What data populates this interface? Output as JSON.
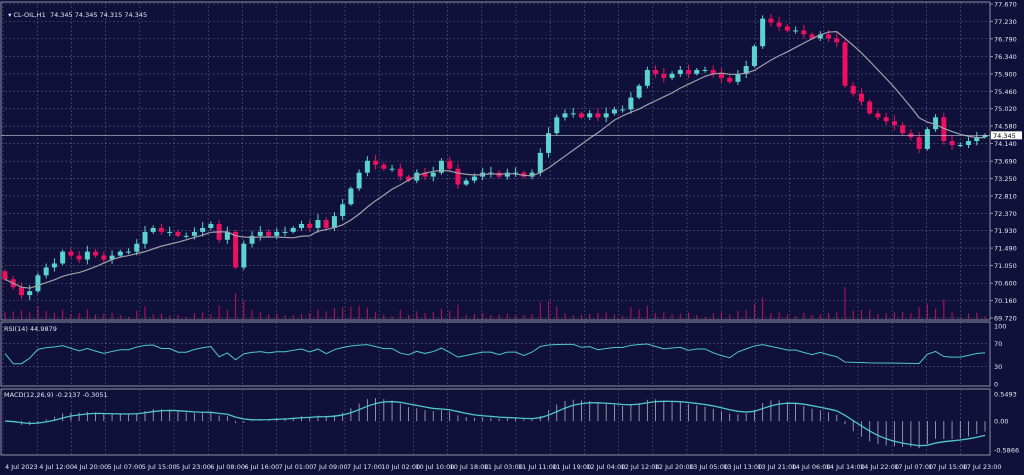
{
  "header": {
    "symbol": "CL-OIL,H1",
    "ohlc": "74.345 74.345 74.315 74.345"
  },
  "colors": {
    "background": "#10113a",
    "grid": "#5a5c80",
    "bull": "#5dd3d0",
    "bear": "#ee1060",
    "ma": "#a0a0a8",
    "indicator": "#4fc8c8",
    "axis_border": "#9090a0"
  },
  "chart_data": [
    {
      "type": "candlestick",
      "name": "CL-OIL,H1",
      "current_price": "74.345",
      "ylim": [
        69.72,
        77.67
      ],
      "y_ticks": [
        "77.670",
        "77.230",
        "76.790",
        "76.340",
        "75.900",
        "75.460",
        "75.020",
        "74.580",
        "74.140",
        "73.690",
        "73.250",
        "72.810",
        "72.370",
        "71.930",
        "71.490",
        "71.050",
        "70.600",
        "70.160",
        "69.720"
      ],
      "x_ticks": [
        "4 Jul 2023",
        "4 Jul 12:00",
        "4 Jul 20:00",
        "5 Jul 07:00",
        "5 Jul 15:00",
        "5 Jul 23:00",
        "6 Jul 08:00",
        "6 Jul 16:00",
        "7 Jul 01:00",
        "7 Jul 09:00",
        "7 Jul 17:00",
        "10 Jul 02:00",
        "10 Jul 10:00",
        "10 Jul 18:00",
        "11 Jul 03:00",
        "11 Jul 11:00",
        "11 Jul 19:00",
        "12 Jul 04:00",
        "12 Jul 12:00",
        "12 Jul 20:00",
        "13 Jul 05:00",
        "13 Jul 13:00",
        "13 Jul 21:00",
        "14 Jul 06:00",
        "14 Jul 14:00",
        "14 Jul 22:00",
        "17 Jul 07:00",
        "17 Jul 15:00",
        "17 Jul 23:00"
      ],
      "closes": [
        70.7,
        70.5,
        70.3,
        70.4,
        70.8,
        71.0,
        71.1,
        71.4,
        71.3,
        71.2,
        71.4,
        71.3,
        71.2,
        71.3,
        71.4,
        71.4,
        71.6,
        71.9,
        72.0,
        71.9,
        71.9,
        71.8,
        71.8,
        71.9,
        72.0,
        72.1,
        71.7,
        71.9,
        71.0,
        71.6,
        71.8,
        71.9,
        71.8,
        71.9,
        71.9,
        72.0,
        72.1,
        72.0,
        72.2,
        72.0,
        72.3,
        72.6,
        73.0,
        73.4,
        73.7,
        73.6,
        73.5,
        73.5,
        73.3,
        73.2,
        73.4,
        73.3,
        73.4,
        73.7,
        73.5,
        73.1,
        73.2,
        73.3,
        73.4,
        73.4,
        73.3,
        73.4,
        73.4,
        73.3,
        73.4,
        73.9,
        74.4,
        74.8,
        74.9,
        74.9,
        74.8,
        74.9,
        74.8,
        74.9,
        75.0,
        75.0,
        75.3,
        75.6,
        76.0,
        75.9,
        75.8,
        75.9,
        76.0,
        75.9,
        76.0,
        76.0,
        75.9,
        75.8,
        75.7,
        75.9,
        76.1,
        76.6,
        77.3,
        77.2,
        77.1,
        77.0,
        77.0,
        76.9,
        76.8,
        76.9,
        76.8,
        76.7,
        75.6,
        75.4,
        75.2,
        74.9,
        74.8,
        74.7,
        74.6,
        74.4,
        74.3,
        74.0,
        74.5,
        74.8,
        74.2,
        74.1,
        74.1,
        74.2,
        74.3,
        74.345
      ],
      "overlay": "moving-average",
      "volume": true
    },
    {
      "type": "line",
      "name": "RSI(14) 44.9879",
      "ylim": [
        0,
        100
      ],
      "y_ticks": [
        "100",
        "70",
        "30",
        "0"
      ]
    },
    {
      "type": "line+bar",
      "name": "MACD(12,26,9) -0.2137 -0.3051",
      "ylim": [
        -0.5866,
        0.5493
      ],
      "y_ticks": [
        "0.5493",
        "0.00",
        "-0.5866"
      ]
    }
  ]
}
